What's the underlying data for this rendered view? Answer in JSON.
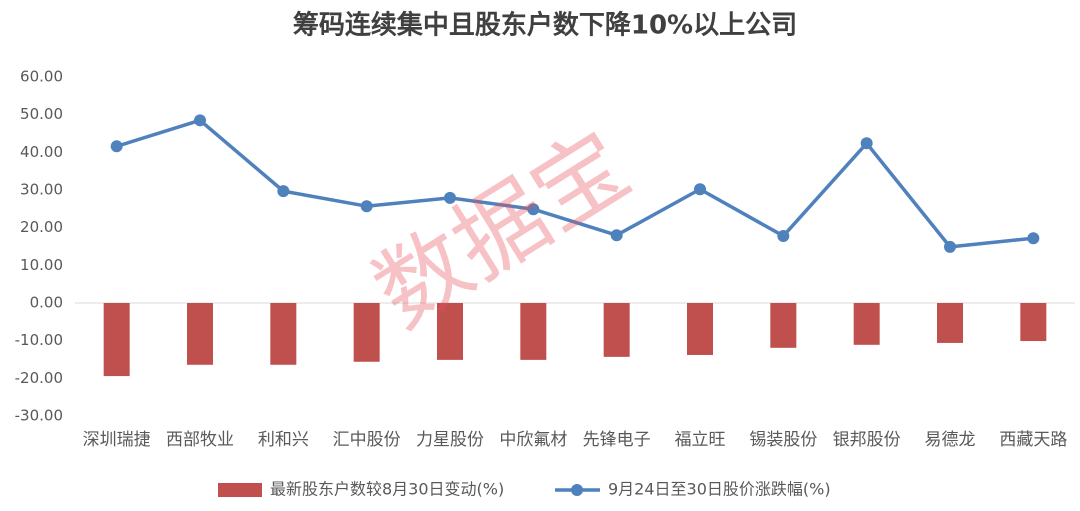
{
  "chart_data": {
    "type": "bar-line",
    "title": "筹码连续集中且股东户数下降10%以上公司",
    "watermark": "数据宝",
    "categories": [
      "深圳瑞捷",
      "西部牧业",
      "利和兴",
      "汇中股份",
      "力星股份",
      "中欣氟材",
      "先锋电子",
      "福立旺",
      "锡装股份",
      "银邦股份",
      "易德龙",
      "西藏天路"
    ],
    "series": [
      {
        "name": "最新股东户数较8月30日变动(%)",
        "type": "bar",
        "color": "#c0504d",
        "values": [
          -19.4,
          -16.4,
          -16.4,
          -15.6,
          -15.1,
          -15.1,
          -14.3,
          -13.8,
          -11.9,
          -11.1,
          -10.6,
          -10.1
        ]
      },
      {
        "name": "9月24日至30日股价涨跌幅(%)",
        "type": "line",
        "color": "#4f81bd",
        "values": [
          41.6,
          48.5,
          29.7,
          25.7,
          27.9,
          24.9,
          18.0,
          30.2,
          17.8,
          42.4,
          14.9,
          17.2
        ]
      }
    ],
    "ylim": [
      -30,
      60
    ],
    "yticks": [
      {
        "value": 60,
        "label": "60.00"
      },
      {
        "value": 50,
        "label": "50.00"
      },
      {
        "value": 40,
        "label": "40.00"
      },
      {
        "value": 30,
        "label": "30.00"
      },
      {
        "value": 20,
        "label": "20.00"
      },
      {
        "value": 10,
        "label": "10.00"
      },
      {
        "value": 0,
        "label": "0.00"
      },
      {
        "value": -10,
        "label": "-10.00"
      },
      {
        "value": -20,
        "label": "-20.00"
      },
      {
        "value": -30,
        "label": "-30.00"
      }
    ],
    "grid": false,
    "legend": "bottom"
  }
}
